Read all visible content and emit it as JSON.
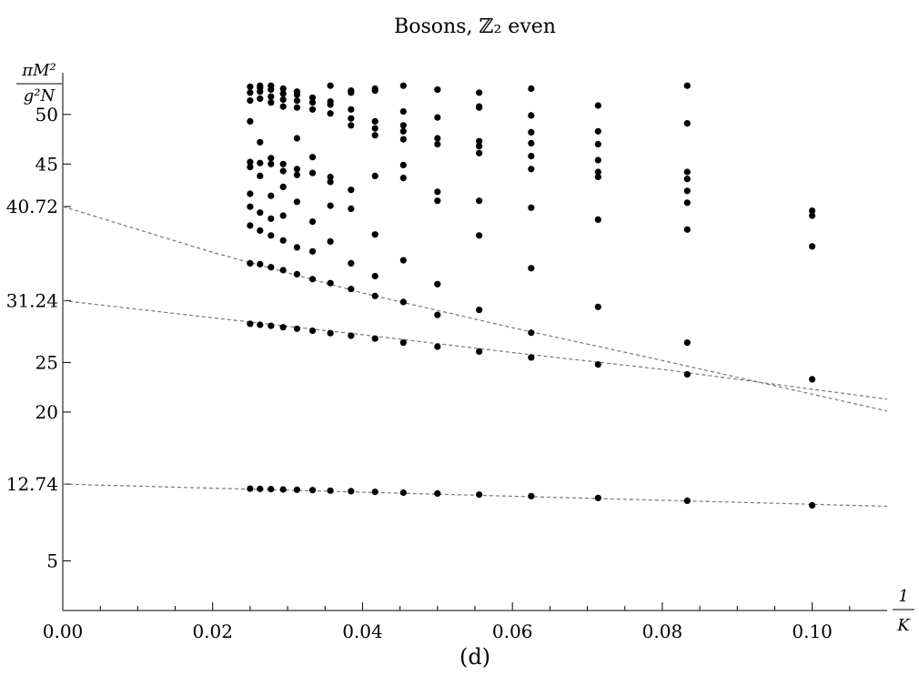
{
  "chart_data": {
    "type": "scatter",
    "title": "Bosons, ℤ₂ even",
    "caption": "(d)",
    "xlabel": {
      "numerator": "1",
      "denominator": "K"
    },
    "ylabel": {
      "numerator": "πM²",
      "denominator": "g²N"
    },
    "xlim": [
      0,
      0.11
    ],
    "ylim": [
      0,
      54.2
    ],
    "x_ticks": [
      {
        "value": 0.0,
        "label": "0.00"
      },
      {
        "value": 0.02,
        "label": "0.02"
      },
      {
        "value": 0.04,
        "label": "0.04"
      },
      {
        "value": 0.06,
        "label": "0.06"
      },
      {
        "value": 0.08,
        "label": "0.08"
      },
      {
        "value": 0.1,
        "label": "0.10"
      }
    ],
    "y_ticks": [
      {
        "value": 5,
        "label": "5"
      },
      {
        "value": 12.74,
        "label": "12.74"
      },
      {
        "value": 20,
        "label": "20"
      },
      {
        "value": 25,
        "label": "25"
      },
      {
        "value": 31.24,
        "label": "31.24"
      },
      {
        "value": 40.72,
        "label": "40.72"
      },
      {
        "value": 45,
        "label": "45"
      },
      {
        "value": 50,
        "label": "50"
      }
    ],
    "grid": false,
    "fit_curves": [
      {
        "points": [
          [
            0,
            12.74
          ],
          [
            0.11,
            10.5
          ]
        ]
      },
      {
        "points": [
          [
            0,
            31.24
          ],
          [
            0.02,
            29.5
          ],
          [
            0.04,
            27.8
          ],
          [
            0.06,
            26.0
          ],
          [
            0.08,
            24.3
          ],
          [
            0.11,
            21.3
          ]
        ]
      },
      {
        "points": [
          [
            0,
            40.72
          ],
          [
            0.02,
            36.1
          ],
          [
            0.04,
            32.0
          ],
          [
            0.06,
            28.5
          ],
          [
            0.08,
            25.2
          ],
          [
            0.11,
            20.1
          ]
        ]
      }
    ],
    "series": [
      {
        "points": [
          [
            0.025,
            12.28
          ],
          [
            0.02632,
            12.26
          ],
          [
            0.02778,
            12.23
          ],
          [
            0.02941,
            12.2
          ],
          [
            0.03125,
            12.17
          ],
          [
            0.03333,
            12.13
          ],
          [
            0.03571,
            12.08
          ],
          [
            0.03846,
            12.02
          ],
          [
            0.04167,
            11.96
          ],
          [
            0.04545,
            11.88
          ],
          [
            0.05,
            11.79
          ],
          [
            0.05556,
            11.68
          ],
          [
            0.0625,
            11.53
          ],
          [
            0.07143,
            11.34
          ],
          [
            0.08333,
            11.06
          ],
          [
            0.1,
            10.6
          ],
          [
            0.025,
            28.9
          ],
          [
            0.02632,
            28.8
          ],
          [
            0.02778,
            28.7
          ],
          [
            0.02941,
            28.55
          ],
          [
            0.03125,
            28.4
          ],
          [
            0.03333,
            28.2
          ],
          [
            0.03571,
            27.95
          ],
          [
            0.03846,
            27.7
          ],
          [
            0.04167,
            27.4
          ],
          [
            0.04545,
            27.0
          ],
          [
            0.05,
            26.6
          ],
          [
            0.05556,
            26.1
          ],
          [
            0.0625,
            25.5
          ],
          [
            0.07143,
            24.8
          ],
          [
            0.08333,
            23.8
          ],
          [
            0.1,
            23.3
          ],
          [
            0.025,
            35.0
          ],
          [
            0.02632,
            34.9
          ],
          [
            0.02778,
            34.6
          ],
          [
            0.02941,
            34.3
          ],
          [
            0.03125,
            33.9
          ],
          [
            0.03333,
            33.4
          ],
          [
            0.03571,
            33.0
          ],
          [
            0.03846,
            32.4
          ],
          [
            0.04167,
            31.7
          ],
          [
            0.04545,
            31.1
          ],
          [
            0.05,
            29.8
          ],
          [
            0.05556,
            30.3
          ],
          [
            0.0625,
            28.0
          ],
          [
            0.07143,
            30.6
          ],
          [
            0.08333,
            27.0
          ],
          [
            0.025,
            38.8
          ],
          [
            0.02632,
            38.3
          ],
          [
            0.02778,
            37.8
          ],
          [
            0.02941,
            37.3
          ],
          [
            0.03125,
            36.6
          ],
          [
            0.03333,
            36.2
          ],
          [
            0.03571,
            37.2
          ],
          [
            0.03846,
            35.0
          ],
          [
            0.04167,
            33.7
          ],
          [
            0.04545,
            35.3
          ],
          [
            0.05,
            32.9
          ],
          [
            0.05556,
            37.8
          ],
          [
            0.0625,
            34.5
          ],
          [
            0.07143,
            39.4
          ],
          [
            0.08333,
            38.4
          ],
          [
            0.1,
            36.7
          ],
          [
            0.025,
            40.7
          ],
          [
            0.02632,
            40.1
          ],
          [
            0.02778,
            39.5
          ],
          [
            0.02941,
            39.8
          ],
          [
            0.03125,
            41.2
          ],
          [
            0.03333,
            39.2
          ],
          [
            0.03571,
            40.8
          ],
          [
            0.03846,
            40.5
          ],
          [
            0.04167,
            37.9
          ],
          [
            0.04545,
            43.6
          ],
          [
            0.05,
            41.3
          ],
          [
            0.05556,
            41.3
          ],
          [
            0.0625,
            40.6
          ],
          [
            0.07143,
            45.4
          ],
          [
            0.08333,
            41.1
          ],
          [
            0.1,
            39.8
          ],
          [
            0.025,
            42.0
          ],
          [
            0.02632,
            43.8
          ],
          [
            0.02778,
            41.8
          ],
          [
            0.02941,
            42.7
          ],
          [
            0.03125,
            43.9
          ],
          [
            0.03333,
            45.7
          ],
          [
            0.03571,
            43.2
          ],
          [
            0.03846,
            42.4
          ],
          [
            0.04167,
            43.8
          ],
          [
            0.04545,
            44.9
          ],
          [
            0.05,
            42.2
          ],
          [
            0.05556,
            46.1
          ],
          [
            0.0625,
            44.5
          ],
          [
            0.07143,
            44.2
          ],
          [
            0.08333,
            42.3
          ],
          [
            0.1,
            40.3
          ],
          [
            0.025,
            44.7
          ],
          [
            0.02632,
            45.1
          ],
          [
            0.02778,
            45.0
          ],
          [
            0.02941,
            44.3
          ],
          [
            0.03125,
            44.5
          ],
          [
            0.03333,
            44.1
          ],
          [
            0.03571,
            43.7
          ],
          [
            0.03846,
            48.9
          ],
          [
            0.04167,
            47.9
          ],
          [
            0.04545,
            47.5
          ],
          [
            0.05,
            47.0
          ],
          [
            0.05556,
            46.8
          ],
          [
            0.0625,
            45.8
          ],
          [
            0.07143,
            43.7
          ],
          [
            0.08333,
            43.5
          ],
          [
            0.025,
            45.2
          ],
          [
            0.02632,
            47.2
          ],
          [
            0.02778,
            45.6
          ],
          [
            0.02941,
            45.0
          ],
          [
            0.03125,
            47.6
          ],
          [
            0.03333,
            50.5
          ],
          [
            0.03571,
            50.1
          ],
          [
            0.03846,
            49.6
          ],
          [
            0.04167,
            48.6
          ],
          [
            0.04545,
            48.3
          ],
          [
            0.05,
            47.6
          ],
          [
            0.05556,
            47.3
          ],
          [
            0.0625,
            47.1
          ],
          [
            0.07143,
            47.0
          ],
          [
            0.08333,
            44.2
          ],
          [
            0.025,
            49.3
          ],
          [
            0.02632,
            51.6
          ],
          [
            0.02778,
            51.2
          ],
          [
            0.02941,
            50.8
          ],
          [
            0.03125,
            50.7
          ],
          [
            0.03333,
            51.2
          ],
          [
            0.03571,
            51.0
          ],
          [
            0.03846,
            50.5
          ],
          [
            0.04167,
            49.3
          ],
          [
            0.04545,
            48.9
          ],
          [
            0.05,
            49.7
          ],
          [
            0.05556,
            50.7
          ],
          [
            0.0625,
            48.2
          ],
          [
            0.07143,
            48.3
          ],
          [
            0.08333,
            49.1
          ],
          [
            0.025,
            51.4
          ],
          [
            0.02632,
            52.3
          ],
          [
            0.02778,
            51.8
          ],
          [
            0.02941,
            51.5
          ],
          [
            0.03125,
            51.4
          ],
          [
            0.03333,
            51.7
          ],
          [
            0.03571,
            51.3
          ],
          [
            0.03846,
            52.2
          ],
          [
            0.04167,
            52.4
          ],
          [
            0.04545,
            50.3
          ],
          [
            0.05,
            52.5
          ],
          [
            0.05556,
            50.8
          ],
          [
            0.0625,
            49.9
          ],
          [
            0.07143,
            50.9
          ],
          [
            0.08333,
            52.9
          ],
          [
            0.025,
            52.2
          ],
          [
            0.02632,
            52.7
          ],
          [
            0.02778,
            52.5
          ],
          [
            0.02941,
            52.1
          ],
          [
            0.03125,
            52.0
          ],
          [
            0.03571,
            52.9
          ],
          [
            0.03846,
            52.4
          ],
          [
            0.04167,
            52.6
          ],
          [
            0.04545,
            52.9
          ],
          [
            0.05,
            52.5
          ],
          [
            0.05556,
            52.2
          ],
          [
            0.0625,
            52.6
          ],
          [
            0.025,
            52.8
          ],
          [
            0.02632,
            52.9
          ],
          [
            0.02778,
            52.9
          ],
          [
            0.02941,
            52.6
          ],
          [
            0.03125,
            52.3
          ]
        ]
      }
    ]
  }
}
